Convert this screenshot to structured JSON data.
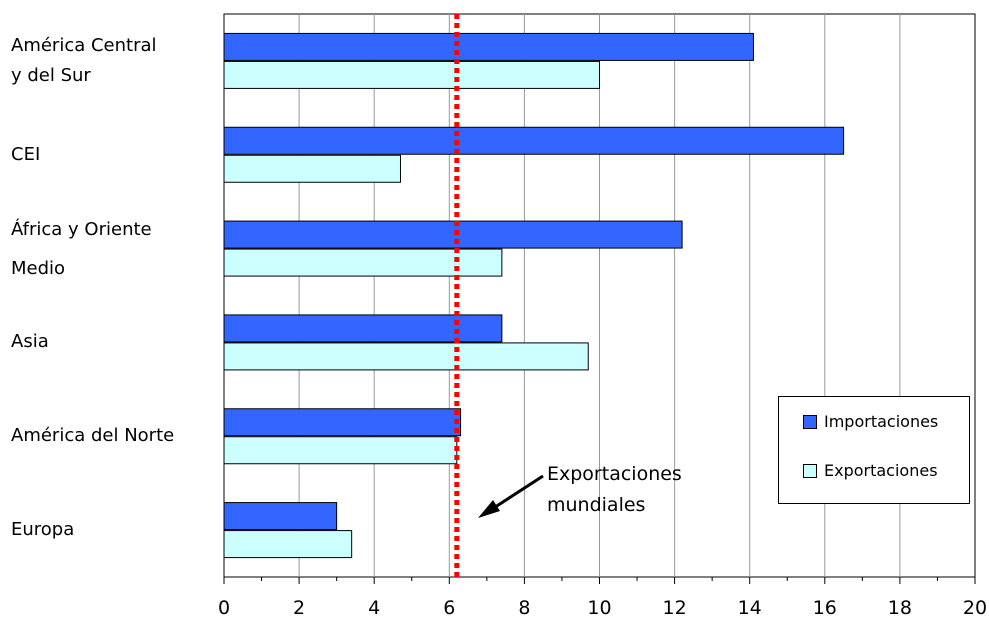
{
  "chart_data": {
    "type": "bar",
    "orientation": "horizontal",
    "categories": [
      [
        "América Central",
        "y del Sur"
      ],
      [
        "CEI"
      ],
      [
        "África y Oriente",
        "Medio"
      ],
      [
        "Asia"
      ],
      [
        "América del Norte"
      ],
      [
        "Europa"
      ]
    ],
    "series": [
      {
        "name": "Importaciones",
        "color": "#3366ff",
        "values": [
          14.1,
          16.5,
          12.2,
          7.4,
          6.3,
          3.0
        ]
      },
      {
        "name": "Exportaciones",
        "color": "#ccffff",
        "values": [
          10.0,
          4.7,
          7.4,
          9.7,
          6.2,
          3.4
        ]
      }
    ],
    "xlim": [
      0,
      20
    ],
    "xticks": [
      0,
      2,
      4,
      6,
      8,
      10,
      12,
      14,
      16,
      18,
      20
    ],
    "grid": "vertical",
    "legend_position": "right",
    "reference_line": {
      "value": 6.2,
      "color": "#ff0000",
      "style": "dotted"
    },
    "annotation": {
      "lines": [
        "Exportaciones",
        "mundiales"
      ]
    }
  }
}
